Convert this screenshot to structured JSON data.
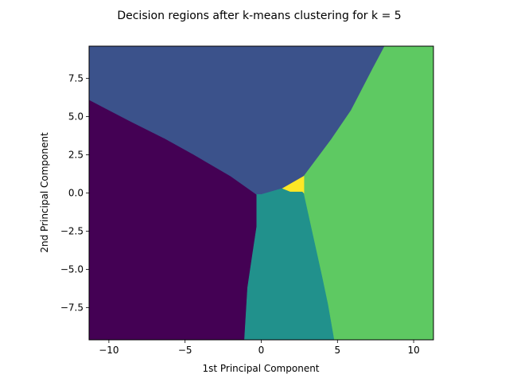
{
  "chart_data": {
    "type": "heatmap",
    "title": "Decision regions after k-means clustering for k = 5",
    "xlabel": "1st Principal Component",
    "ylabel": "2nd Principal Component",
    "xlim": [
      -11.3,
      11.3
    ],
    "ylim": [
      -9.6,
      9.6
    ],
    "grid": false,
    "xticks": [
      -10,
      -5,
      0,
      5,
      10
    ],
    "xtick_labels": [
      "−10",
      "−5",
      "0",
      "5",
      "10"
    ],
    "yticks": [
      -7.5,
      -5.0,
      -2.5,
      0.0,
      2.5,
      5.0,
      7.5
    ],
    "ytick_labels": [
      "−7.5",
      "−5.0",
      "−2.5",
      "0.0",
      "2.5",
      "5.0",
      "7.5"
    ],
    "regions": [
      {
        "cluster": 0,
        "color": "#440154",
        "polygon": [
          [
            -11.3,
            -9.6
          ],
          [
            -11.3,
            6.1
          ],
          [
            -8.6,
            4.7
          ],
          [
            -6.4,
            3.6
          ],
          [
            -4.4,
            2.5
          ],
          [
            -2.0,
            1.1
          ],
          [
            -0.3,
            -0.1
          ],
          [
            -0.3,
            -2.2
          ],
          [
            -0.6,
            -4.2
          ],
          [
            -0.9,
            -6.2
          ],
          [
            -1.1,
            -9.6
          ]
        ]
      },
      {
        "cluster": 1,
        "color": "#3b528b",
        "polygon": [
          [
            -11.3,
            6.1
          ],
          [
            -11.3,
            9.6
          ],
          [
            8.1,
            9.6
          ],
          [
            7.3,
            8.1
          ],
          [
            5.9,
            5.4
          ],
          [
            4.6,
            3.5
          ],
          [
            2.8,
            1.1
          ],
          [
            1.4,
            0.3
          ],
          [
            0.0,
            -0.1
          ],
          [
            -0.3,
            -0.1
          ],
          [
            -2.0,
            1.1
          ],
          [
            -4.4,
            2.5
          ],
          [
            -6.4,
            3.6
          ],
          [
            -8.6,
            4.7
          ]
        ]
      },
      {
        "cluster": 2,
        "color": "#21918c",
        "polygon": [
          [
            -0.3,
            -0.1
          ],
          [
            0.0,
            -0.1
          ],
          [
            1.4,
            0.3
          ],
          [
            1.9,
            0.1
          ],
          [
            2.7,
            0.1
          ],
          [
            2.8,
            0.0
          ],
          [
            3.4,
            -2.7
          ],
          [
            4.0,
            -5.4
          ],
          [
            4.4,
            -7.3
          ],
          [
            4.8,
            -9.6
          ],
          [
            -1.1,
            -9.6
          ],
          [
            -0.9,
            -6.2
          ],
          [
            -0.6,
            -4.2
          ],
          [
            -0.3,
            -2.2
          ]
        ]
      },
      {
        "cluster": 3,
        "color": "#5ec962",
        "polygon": [
          [
            8.1,
            9.6
          ],
          [
            11.3,
            9.6
          ],
          [
            11.3,
            -9.6
          ],
          [
            4.8,
            -9.6
          ],
          [
            4.4,
            -7.3
          ],
          [
            4.0,
            -5.4
          ],
          [
            3.4,
            -2.7
          ],
          [
            2.8,
            0.0
          ],
          [
            2.8,
            1.1
          ],
          [
            4.6,
            3.5
          ],
          [
            5.9,
            5.4
          ],
          [
            7.3,
            8.1
          ]
        ]
      },
      {
        "cluster": 4,
        "color": "#fde725",
        "polygon": [
          [
            1.4,
            0.3
          ],
          [
            2.8,
            1.1
          ],
          [
            2.8,
            0.0
          ],
          [
            2.7,
            0.1
          ],
          [
            1.9,
            0.1
          ]
        ]
      }
    ]
  }
}
